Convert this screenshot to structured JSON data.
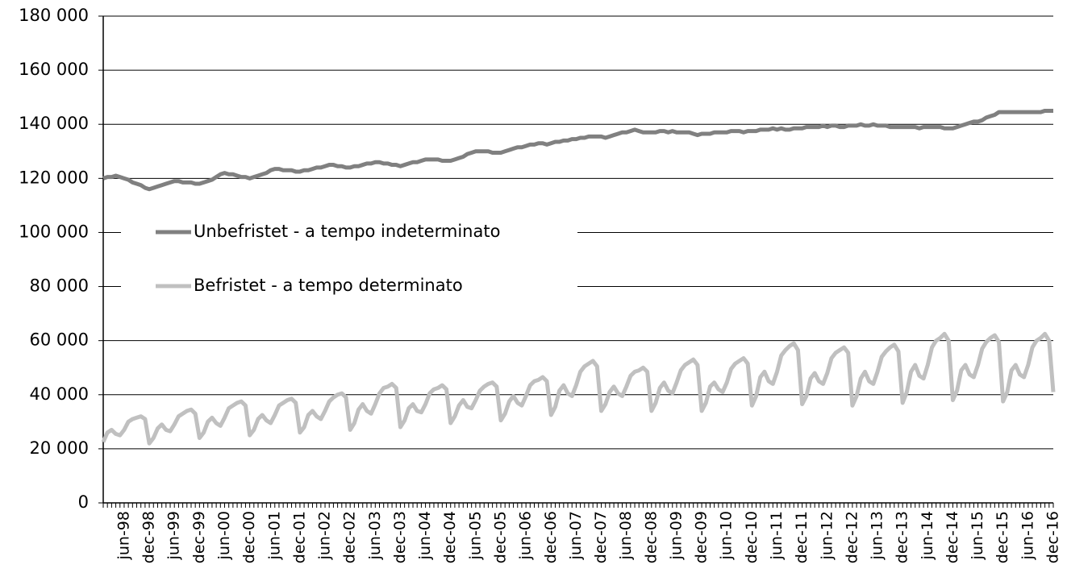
{
  "chart_data": {
    "type": "line",
    "categories": [
      null,
      null,
      null,
      null,
      null,
      "jun-98",
      null,
      null,
      null,
      null,
      null,
      "dec-98",
      null,
      null,
      null,
      null,
      null,
      "jun-99",
      null,
      null,
      null,
      null,
      null,
      "dec-99",
      null,
      null,
      null,
      null,
      null,
      "jun-00",
      null,
      null,
      null,
      null,
      null,
      "dec-00",
      null,
      null,
      null,
      null,
      null,
      "jun-01",
      null,
      null,
      null,
      null,
      null,
      "dec-01",
      null,
      null,
      null,
      null,
      null,
      "jun-02",
      null,
      null,
      null,
      null,
      null,
      "dec-02",
      null,
      null,
      null,
      null,
      null,
      "jun-03",
      null,
      null,
      null,
      null,
      null,
      "dec-03",
      null,
      null,
      null,
      null,
      null,
      "jun-04",
      null,
      null,
      null,
      null,
      null,
      "dec-04",
      null,
      null,
      null,
      null,
      null,
      "jun-05",
      null,
      null,
      null,
      null,
      null,
      "dec-05",
      null,
      null,
      null,
      null,
      null,
      "jun-06",
      null,
      null,
      null,
      null,
      null,
      "dec-06",
      null,
      null,
      null,
      null,
      null,
      "jun-07",
      null,
      null,
      null,
      null,
      null,
      "dec-07",
      null,
      null,
      null,
      null,
      null,
      "jun-08",
      null,
      null,
      null,
      null,
      null,
      "dec-08",
      null,
      null,
      null,
      null,
      null,
      "jun-09",
      null,
      null,
      null,
      null,
      null,
      "dec-09",
      null,
      null,
      null,
      null,
      null,
      "jun-10",
      null,
      null,
      null,
      null,
      null,
      "dec-10",
      null,
      null,
      null,
      null,
      null,
      "jun-11",
      null,
      null,
      null,
      null,
      null,
      "dec-11",
      null,
      null,
      null,
      null,
      null,
      "jun-12",
      null,
      null,
      null,
      null,
      null,
      "dec-12",
      null,
      null,
      null,
      null,
      null,
      "jun-13",
      null,
      null,
      null,
      null,
      null,
      "dec-13",
      null,
      null,
      null,
      null,
      null,
      "jun-14",
      null,
      null,
      null,
      null,
      null,
      "dec-14",
      null,
      null,
      null,
      null,
      null,
      "jun-15",
      null,
      null,
      null,
      null,
      null,
      "dec-15",
      null,
      null,
      null,
      null,
      null,
      "jun-16",
      null,
      null,
      null,
      null,
      null,
      "dec-16"
    ],
    "series": [
      {
        "name": "Unbefristet - a tempo indeterminato",
        "color": "#808080",
        "values": [
          120000,
          120500,
          120500,
          121000,
          120500,
          120000,
          119500,
          118500,
          118000,
          117500,
          116500,
          116000,
          116500,
          117000,
          117500,
          118000,
          118500,
          119000,
          119000,
          118500,
          118500,
          118500,
          118000,
          118000,
          118500,
          119000,
          119500,
          120500,
          121500,
          122000,
          121500,
          121500,
          121000,
          120500,
          120500,
          120000,
          120500,
          121000,
          121500,
          122000,
          123000,
          123500,
          123500,
          123000,
          123000,
          123000,
          122500,
          122500,
          123000,
          123000,
          123500,
          124000,
          124000,
          124500,
          125000,
          125000,
          124500,
          124500,
          124000,
          124000,
          124500,
          124500,
          125000,
          125500,
          125500,
          126000,
          126000,
          125500,
          125500,
          125000,
          125000,
          124500,
          125000,
          125500,
          126000,
          126000,
          126500,
          127000,
          127000,
          127000,
          127000,
          126500,
          126500,
          126500,
          127000,
          127500,
          128000,
          129000,
          129500,
          130000,
          130000,
          130000,
          130000,
          129500,
          129500,
          129500,
          130000,
          130500,
          131000,
          131500,
          131500,
          132000,
          132500,
          132500,
          133000,
          133000,
          132500,
          133000,
          133500,
          133500,
          134000,
          134000,
          134500,
          134500,
          135000,
          135000,
          135500,
          135500,
          135500,
          135500,
          135000,
          135500,
          136000,
          136500,
          137000,
          137000,
          137500,
          138000,
          137500,
          137000,
          137000,
          137000,
          137000,
          137500,
          137500,
          137000,
          137500,
          137000,
          137000,
          137000,
          137000,
          136500,
          136000,
          136500,
          136500,
          136500,
          137000,
          137000,
          137000,
          137000,
          137500,
          137500,
          137500,
          137000,
          137500,
          137500,
          137500,
          138000,
          138000,
          138000,
          138500,
          138000,
          138500,
          138000,
          138000,
          138500,
          138500,
          138500,
          139000,
          139000,
          139000,
          139000,
          139500,
          139000,
          139500,
          139500,
          139000,
          139000,
          139500,
          139500,
          139500,
          140000,
          139500,
          139500,
          140000,
          139500,
          139500,
          139500,
          139000,
          139000,
          139000,
          139000,
          139000,
          139000,
          139000,
          138500,
          139000,
          139000,
          139000,
          139000,
          139000,
          138500,
          138500,
          138500,
          139000,
          139500,
          140000,
          140500,
          141000,
          141000,
          141500,
          142500,
          143000,
          143500,
          144500,
          144500,
          144500,
          144500,
          144500,
          144500,
          144500,
          144500,
          144500,
          144500,
          144500,
          145000,
          145000,
          145000
        ]
      },
      {
        "name": "Befristet - a tempo determinato",
        "color": "#c0c0c0",
        "values": [
          22500,
          26000,
          27000,
          25500,
          25000,
          27000,
          30000,
          31000,
          31500,
          32000,
          31000,
          22000,
          24000,
          27500,
          29000,
          27000,
          26500,
          29000,
          32000,
          33000,
          34000,
          34500,
          33000,
          24000,
          26000,
          30000,
          31500,
          29500,
          28500,
          31500,
          35000,
          36000,
          37000,
          37500,
          36000,
          25000,
          27000,
          31000,
          32500,
          30500,
          29500,
          32500,
          36000,
          37000,
          38000,
          38500,
          37000,
          26000,
          28000,
          32500,
          34000,
          32000,
          31000,
          34000,
          37500,
          39000,
          40000,
          40500,
          39000,
          27000,
          29500,
          34500,
          36500,
          34000,
          33000,
          36500,
          40500,
          42500,
          43000,
          44000,
          42500,
          28000,
          30500,
          35000,
          36500,
          34000,
          33500,
          36500,
          40500,
          42000,
          42500,
          43500,
          42000,
          29500,
          32000,
          36000,
          38000,
          35500,
          35000,
          38000,
          41500,
          43000,
          44000,
          44500,
          43000,
          30500,
          33000,
          37500,
          39500,
          37000,
          36000,
          39500,
          43500,
          45000,
          45500,
          46500,
          45000,
          32500,
          35500,
          41500,
          43500,
          40500,
          39500,
          43500,
          48500,
          50500,
          51500,
          52500,
          50500,
          34000,
          36500,
          41000,
          43000,
          40500,
          39500,
          43000,
          47000,
          48500,
          49000,
          50000,
          48500,
          34000,
          37000,
          42500,
          44500,
          41500,
          40500,
          44500,
          49000,
          51000,
          52000,
          53000,
          51000,
          34000,
          37000,
          43000,
          44500,
          42000,
          41000,
          44500,
          49500,
          51500,
          52500,
          53500,
          51500,
          36000,
          39500,
          46500,
          48500,
          45000,
          44000,
          48500,
          54500,
          56500,
          58000,
          59000,
          56500,
          36500,
          39500,
          46000,
          48000,
          45000,
          44000,
          48000,
          53500,
          55500,
          56500,
          57500,
          55500,
          36000,
          39500,
          46000,
          48500,
          45000,
          44000,
          48500,
          54000,
          56000,
          57500,
          58500,
          56000,
          37000,
          41000,
          48500,
          51000,
          47000,
          46000,
          51000,
          57500,
          60000,
          61000,
          62500,
          60000,
          38000,
          41500,
          49000,
          51000,
          47500,
          46500,
          51000,
          57000,
          59500,
          61000,
          62000,
          59500,
          37500,
          41000,
          49000,
          51000,
          47500,
          46500,
          51000,
          57500,
          60000,
          61000,
          62500,
          60000,
          41000
        ]
      }
    ],
    "ylim": [
      0,
      180000
    ],
    "yticks": [
      0,
      {
        "value": 20000,
        "label": "20 000"
      },
      {
        "value": 40000,
        "label": "40 000"
      },
      {
        "value": 60000,
        "label": "60 000"
      },
      {
        "value": 80000,
        "label": "80 000"
      },
      {
        "value": 100000,
        "label": "100 000"
      },
      {
        "value": 120000,
        "label": "120 000"
      },
      {
        "value": 140000,
        "label": "140 000"
      },
      {
        "value": 160000,
        "label": "160 000"
      },
      {
        "value": 180000,
        "label": "180 000"
      }
    ],
    "grid": true
  }
}
